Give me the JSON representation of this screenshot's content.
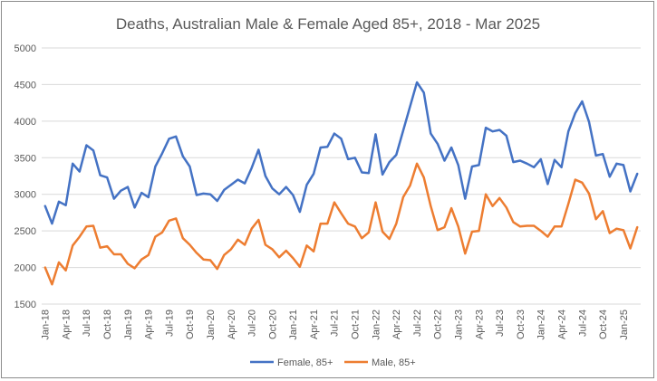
{
  "chart_data": {
    "type": "line",
    "title": "Deaths, Australian Male & Female Aged 85+, 2018 - Mar 2025",
    "xlabel": "",
    "ylabel": "",
    "ylim": [
      1500,
      5000
    ],
    "yticks": [
      1500,
      2000,
      2500,
      3000,
      3500,
      4000,
      4500,
      5000
    ],
    "grid": true,
    "legend_position": "bottom",
    "x": [
      "Jan-18",
      "Feb-18",
      "Mar-18",
      "Apr-18",
      "May-18",
      "Jun-18",
      "Jul-18",
      "Aug-18",
      "Sep-18",
      "Oct-18",
      "Nov-18",
      "Dec-18",
      "Jan-19",
      "Feb-19",
      "Mar-19",
      "Apr-19",
      "May-19",
      "Jun-19",
      "Jul-19",
      "Aug-19",
      "Sep-19",
      "Oct-19",
      "Nov-19",
      "Dec-19",
      "Jan-20",
      "Feb-20",
      "Mar-20",
      "Apr-20",
      "May-20",
      "Jun-20",
      "Jul-20",
      "Aug-20",
      "Sep-20",
      "Oct-20",
      "Nov-20",
      "Dec-20",
      "Jan-21",
      "Feb-21",
      "Mar-21",
      "Apr-21",
      "May-21",
      "Jun-21",
      "Jul-21",
      "Aug-21",
      "Sep-21",
      "Oct-21",
      "Nov-21",
      "Dec-21",
      "Jan-22",
      "Feb-22",
      "Mar-22",
      "Apr-22",
      "May-22",
      "Jun-22",
      "Jul-22",
      "Aug-22",
      "Sep-22",
      "Oct-22",
      "Nov-22",
      "Dec-22",
      "Jan-23",
      "Feb-23",
      "Mar-23",
      "Apr-23",
      "May-23",
      "Jun-23",
      "Jul-23",
      "Aug-23",
      "Sep-23",
      "Oct-23",
      "Nov-23",
      "Dec-23",
      "Jan-24",
      "Feb-24",
      "Mar-24",
      "Apr-24",
      "May-24",
      "Jun-24",
      "Jul-24",
      "Aug-24",
      "Sep-24",
      "Oct-24",
      "Nov-24",
      "Dec-24",
      "Jan-25",
      "Feb-25",
      "Mar-25"
    ],
    "tick_labels": [
      "Jan-18",
      "Apr-18",
      "Jul-18",
      "Oct-18",
      "Jan-19",
      "Apr-19",
      "Jul-19",
      "Oct-19",
      "Jan-20",
      "Apr-20",
      "Jul-20",
      "Oct-20",
      "Jan-21",
      "Apr-21",
      "Jul-21",
      "Oct-21",
      "Jan-22",
      "Apr-22",
      "Jul-22",
      "Oct-22",
      "Jan-23",
      "Apr-23",
      "Jul-23",
      "Oct-23",
      "Jan-24",
      "Apr-24",
      "Jul-24",
      "Oct-24",
      "Jan-25"
    ],
    "series": [
      {
        "name": "Female, 85+",
        "color": "#4472c4",
        "values": [
          2840,
          2600,
          2900,
          2850,
          3420,
          3310,
          3670,
          3600,
          3260,
          3230,
          2940,
          3050,
          3100,
          2820,
          3020,
          2960,
          3380,
          3560,
          3760,
          3790,
          3520,
          3380,
          2990,
          3010,
          3000,
          2910,
          3060,
          3130,
          3200,
          3150,
          3360,
          3610,
          3250,
          3080,
          3000,
          3100,
          2990,
          2760,
          3130,
          3280,
          3640,
          3650,
          3830,
          3760,
          3480,
          3500,
          3300,
          3290,
          3820,
          3270,
          3440,
          3540,
          3870,
          4200,
          4530,
          4390,
          3830,
          3690,
          3460,
          3640,
          3400,
          2940,
          3380,
          3400,
          3910,
          3860,
          3880,
          3800,
          3440,
          3460,
          3420,
          3370,
          3480,
          3140,
          3470,
          3370,
          3860,
          4110,
          4270,
          3990,
          3530,
          3550,
          3240,
          3420,
          3400,
          3040,
          3280
        ]
      },
      {
        "name": "Male, 85+",
        "color": "#ed7d31",
        "values": [
          2000,
          1770,
          2070,
          1960,
          2300,
          2420,
          2560,
          2570,
          2270,
          2290,
          2180,
          2180,
          2050,
          1990,
          2110,
          2170,
          2420,
          2480,
          2640,
          2670,
          2400,
          2310,
          2200,
          2110,
          2100,
          1980,
          2170,
          2250,
          2380,
          2310,
          2530,
          2650,
          2310,
          2250,
          2140,
          2230,
          2130,
          2010,
          2300,
          2220,
          2600,
          2600,
          2890,
          2740,
          2600,
          2560,
          2400,
          2480,
          2890,
          2490,
          2390,
          2600,
          2960,
          3120,
          3420,
          3230,
          2840,
          2510,
          2550,
          2810,
          2560,
          2190,
          2490,
          2500,
          3000,
          2840,
          2950,
          2820,
          2620,
          2560,
          2570,
          2570,
          2500,
          2420,
          2560,
          2560,
          2870,
          3200,
          3160,
          3010,
          2660,
          2770,
          2470,
          2530,
          2510,
          2260,
          2550
        ]
      }
    ]
  }
}
